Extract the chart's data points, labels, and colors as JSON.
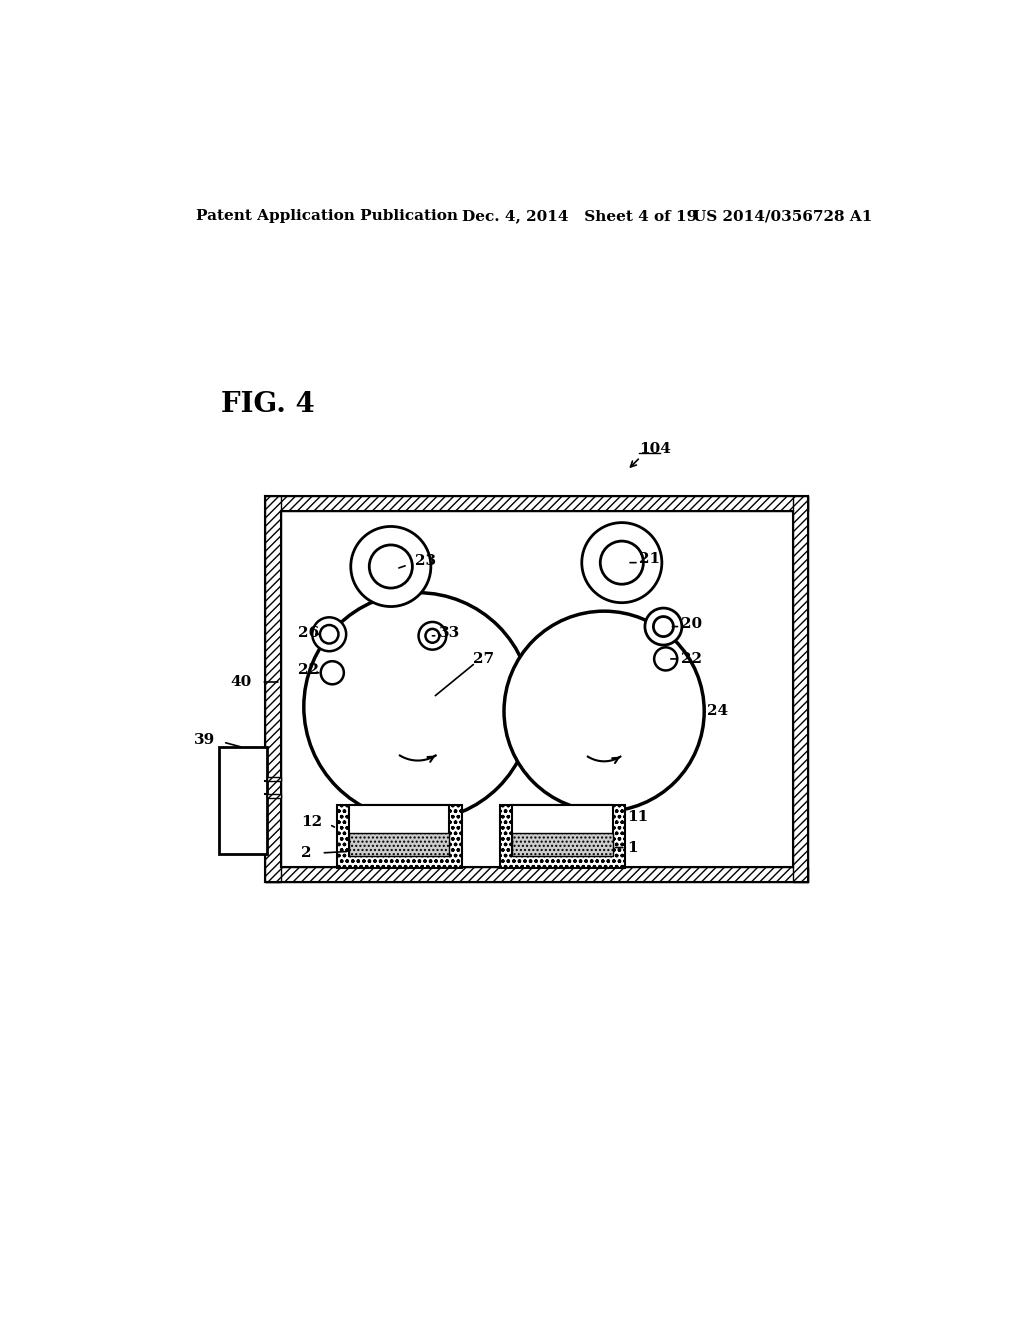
{
  "header_left": "Patent Application Publication",
  "header_mid": "Dec. 4, 2014   Sheet 4 of 19",
  "header_right": "US 2014/0356728 A1",
  "fig_label": "FIG. 4",
  "bg_color": "#ffffff",
  "label_104": "104",
  "label_40": "40",
  "label_39": "39",
  "label_23": "23",
  "label_26": "26",
  "label_22a": "22",
  "label_22b": "22",
  "label_27": "27",
  "label_33": "33",
  "label_21": "21",
  "label_20": "20",
  "label_24": "24",
  "label_12": "12",
  "label_2": "2",
  "label_11": "11",
  "label_1": "1"
}
